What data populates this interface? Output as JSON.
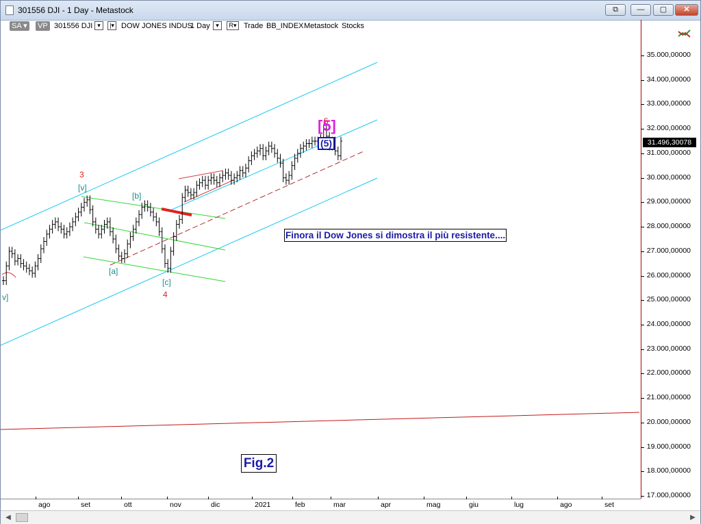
{
  "window": {
    "title": "301556 DJI - 1 Day - Metastock",
    "buttons": {
      "restore_left": "⧉",
      "minimize": "—",
      "maximize": "▢",
      "close": "✕"
    }
  },
  "toolbar": {
    "sa": "SA",
    "vp": "VP",
    "symbol": "301556 DJI",
    "name": "DOW JONES INDUS",
    "period": "1 Day",
    "r_label": "R",
    "trade": "Trade",
    "index": "BB_INDEX",
    "source": "Metastock",
    "stocks": "Stocks"
  },
  "annotations": {
    "note": "Finora il Dow Jones si dimostra il più resistente....",
    "fig": "Fig.2",
    "wave5_magenta": "[5]",
    "wave5_boxed": "(5)",
    "wave5_red": "5",
    "wave3": "3",
    "wave4": "4",
    "wave_v": "[v]",
    "wave_b": "[b]",
    "wave_a": "[a]",
    "wave_c": "[c]",
    "wave_v_left": "v]"
  },
  "chart_data": {
    "type": "line",
    "instrument": "DOW JONES INDUS",
    "last_price": "31.496,30078",
    "y_tick_labels": [
      "35.000,00000",
      "34.000,00000",
      "33.000,00000",
      "32.000,00000",
      "31.000,00000",
      "30.000,00000",
      "29.000,00000",
      "28.000,00000",
      "27.000,00000",
      "26.000,00000",
      "25.000,00000",
      "24.000,00000",
      "23.000,00000",
      "22.000,00000",
      "21.000,00000",
      "20.000,00000",
      "19.000,00000",
      "18.000,00000",
      "17.000,00000"
    ],
    "x_tick_labels": [
      "ago",
      "set",
      "ott",
      "nov",
      "dic",
      "2021",
      "feb",
      "mar",
      "apr",
      "mag",
      "giu",
      "lug",
      "ago",
      "set"
    ],
    "ylim": [
      17000,
      35400
    ],
    "series": [
      {
        "values": [
          25800,
          26400,
          27000,
          26900,
          26600,
          26700,
          26500,
          26400,
          26300,
          26200,
          26100,
          26400,
          26700,
          27100,
          27400,
          27700,
          27900,
          28100,
          28200,
          28000,
          27900,
          27700,
          27800,
          28000,
          28200,
          28400,
          28600,
          28800,
          29000,
          29100,
          28700,
          28200,
          27900,
          27700,
          27900,
          28100,
          28200,
          27800,
          27500,
          27100,
          26800,
          26700,
          26900,
          27300,
          27600,
          27900,
          28200,
          28500,
          28800,
          28900,
          28800,
          28600,
          28400,
          28200,
          27800,
          27100,
          26500,
          26300,
          27000,
          27600,
          28100,
          28300,
          29200,
          29500,
          29400,
          29300,
          29400,
          29700,
          29800,
          29900,
          29700,
          29900,
          30000,
          29900,
          29800,
          30000,
          30100,
          30200,
          30100,
          29900,
          30000,
          30100,
          30300,
          30200,
          30400,
          30700,
          30900,
          31000,
          31100,
          31200,
          30900,
          31100,
          31300,
          31200,
          31000,
          30800,
          30600,
          30000,
          29900,
          30100,
          30500,
          30800,
          31000,
          31200,
          31300,
          31400,
          31400,
          31500,
          31500,
          31400,
          31600,
          32000,
          31700,
          31300,
          31500,
          31100,
          30900,
          31500
        ]
      }
    ]
  }
}
